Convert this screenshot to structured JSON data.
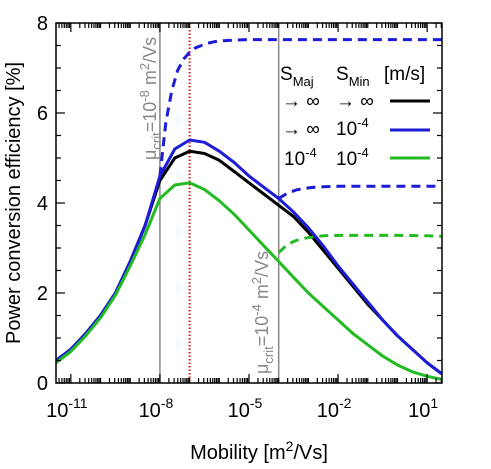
{
  "chart_data": {
    "type": "line",
    "xlabel": "Mobility [m²/Vs]",
    "ylabel": "Power conversion efficiency [%]",
    "xscale": "log10",
    "xlim": [
      -11.5,
      1.5
    ],
    "ylim": [
      0,
      8
    ],
    "x_ticks": [
      -11,
      -8,
      -5,
      -2,
      1
    ],
    "y_ticks": [
      0,
      2,
      4,
      6,
      8
    ],
    "minor_x_ticks_per_decade": true,
    "minor_y_tick_step": 0.5,
    "grid": false,
    "vlines": [
      {
        "x": -8.0,
        "style": "solid",
        "color": "#888888"
      },
      {
        "x": -7.0,
        "style": "dotted",
        "color": "#d81b1b"
      },
      {
        "x": -4.0,
        "style": "solid",
        "color": "#888888"
      }
    ],
    "annotations": [
      {
        "id": "crit1",
        "text": "μcrit=10-8 m²/Vs",
        "near_x": -8.0
      },
      {
        "id": "crit2",
        "text": "μcrit=10-4 m²/Vs",
        "near_x": -4.0
      }
    ],
    "legend": {
      "position": "top-right",
      "header": [
        "S_Maj",
        "S_Min",
        "[m/s]"
      ],
      "rows": [
        {
          "smaj": "→ ∞",
          "smin": "→ ∞",
          "color": "#000000"
        },
        {
          "smaj": "→ ∞",
          "smin": "10^-4",
          "color": "#1c1cd6"
        },
        {
          "smaj": "10^-4",
          "smin": "10^-4",
          "color": "#22bb22"
        }
      ]
    },
    "series": [
      {
        "color": "#000000",
        "style": "solid",
        "x": [
          -11.5,
          -11,
          -10.5,
          -10,
          -9.5,
          -9,
          -8.5,
          -8,
          -7.5,
          -7,
          -6.5,
          -6,
          -5.5,
          -5,
          -4.5,
          -4,
          -3.5,
          -3,
          -2.5,
          -2,
          -1.5,
          -1,
          -0.5,
          0,
          0.5,
          1,
          1.5
        ],
        "y": [
          0.5,
          0.75,
          1.1,
          1.5,
          2.0,
          2.7,
          3.5,
          4.5,
          5.0,
          5.15,
          5.1,
          4.95,
          4.7,
          4.45,
          4.2,
          3.95,
          3.7,
          3.35,
          2.95,
          2.55,
          2.15,
          1.75,
          1.4,
          1.05,
          0.75,
          0.45,
          0.2
        ]
      },
      {
        "color": "#1c1cd6",
        "style": "solid",
        "x": [
          -11.5,
          -11,
          -10.5,
          -10,
          -9.5,
          -9,
          -8.5,
          -8,
          -7.5,
          -7,
          -6.5,
          -6,
          -5.5,
          -5,
          -4.5,
          -4,
          -3.5,
          -3,
          -2.5,
          -2,
          -1.5,
          -1,
          -0.5,
          0,
          0.5,
          1,
          1.5
        ],
        "y": [
          0.5,
          0.75,
          1.1,
          1.5,
          2.0,
          2.7,
          3.5,
          4.6,
          5.2,
          5.4,
          5.35,
          5.15,
          4.9,
          4.6,
          4.35,
          4.1,
          3.8,
          3.45,
          3.05,
          2.6,
          2.2,
          1.8,
          1.4,
          1.05,
          0.75,
          0.45,
          0.2
        ]
      },
      {
        "color": "#22bb22",
        "style": "solid",
        "x": [
          -11.5,
          -11,
          -10.5,
          -10,
          -9.5,
          -9,
          -8.5,
          -8,
          -7.5,
          -7,
          -6.5,
          -6,
          -5.5,
          -5,
          -4.5,
          -4,
          -3.5,
          -3,
          -2.5,
          -2,
          -1.5,
          -1,
          -0.5,
          0,
          0.5,
          1,
          1.5
        ],
        "y": [
          0.45,
          0.7,
          1.05,
          1.45,
          1.95,
          2.6,
          3.3,
          4.1,
          4.4,
          4.45,
          4.3,
          4.05,
          3.75,
          3.4,
          3.05,
          2.7,
          2.35,
          2.0,
          1.7,
          1.4,
          1.1,
          0.85,
          0.6,
          0.4,
          0.25,
          0.15,
          0.08
        ]
      },
      {
        "color": "#1c1cd6",
        "style": "dashed",
        "x": [
          -8,
          -7.8,
          -7.6,
          -7.4,
          -7.2,
          -7,
          -6.8,
          -6.6,
          -6.4,
          -6.2,
          -6,
          -5.5,
          -5,
          -4,
          -2,
          0,
          1.5
        ],
        "y": [
          4.6,
          5.8,
          6.5,
          6.95,
          7.2,
          7.35,
          7.45,
          7.5,
          7.55,
          7.58,
          7.6,
          7.62,
          7.63,
          7.63,
          7.63,
          7.63,
          7.63
        ]
      },
      {
        "color": "#1c1cd6",
        "style": "dashed",
        "x": [
          -4,
          -3.7,
          -3.4,
          -3.1,
          -2.8,
          -2.5,
          -2,
          -1,
          0,
          1,
          1.5
        ],
        "y": [
          4.1,
          4.22,
          4.29,
          4.33,
          4.35,
          4.36,
          4.37,
          4.37,
          4.37,
          4.37,
          4.37
        ]
      },
      {
        "color": "#22bb22",
        "style": "dashed",
        "x": [
          -4,
          -3.7,
          -3.4,
          -3.1,
          -2.8,
          -2.5,
          -2,
          -1,
          0,
          1,
          1.5
        ],
        "y": [
          2.9,
          3.08,
          3.17,
          3.22,
          3.25,
          3.27,
          3.28,
          3.28,
          3.28,
          3.27,
          3.26
        ]
      }
    ]
  }
}
